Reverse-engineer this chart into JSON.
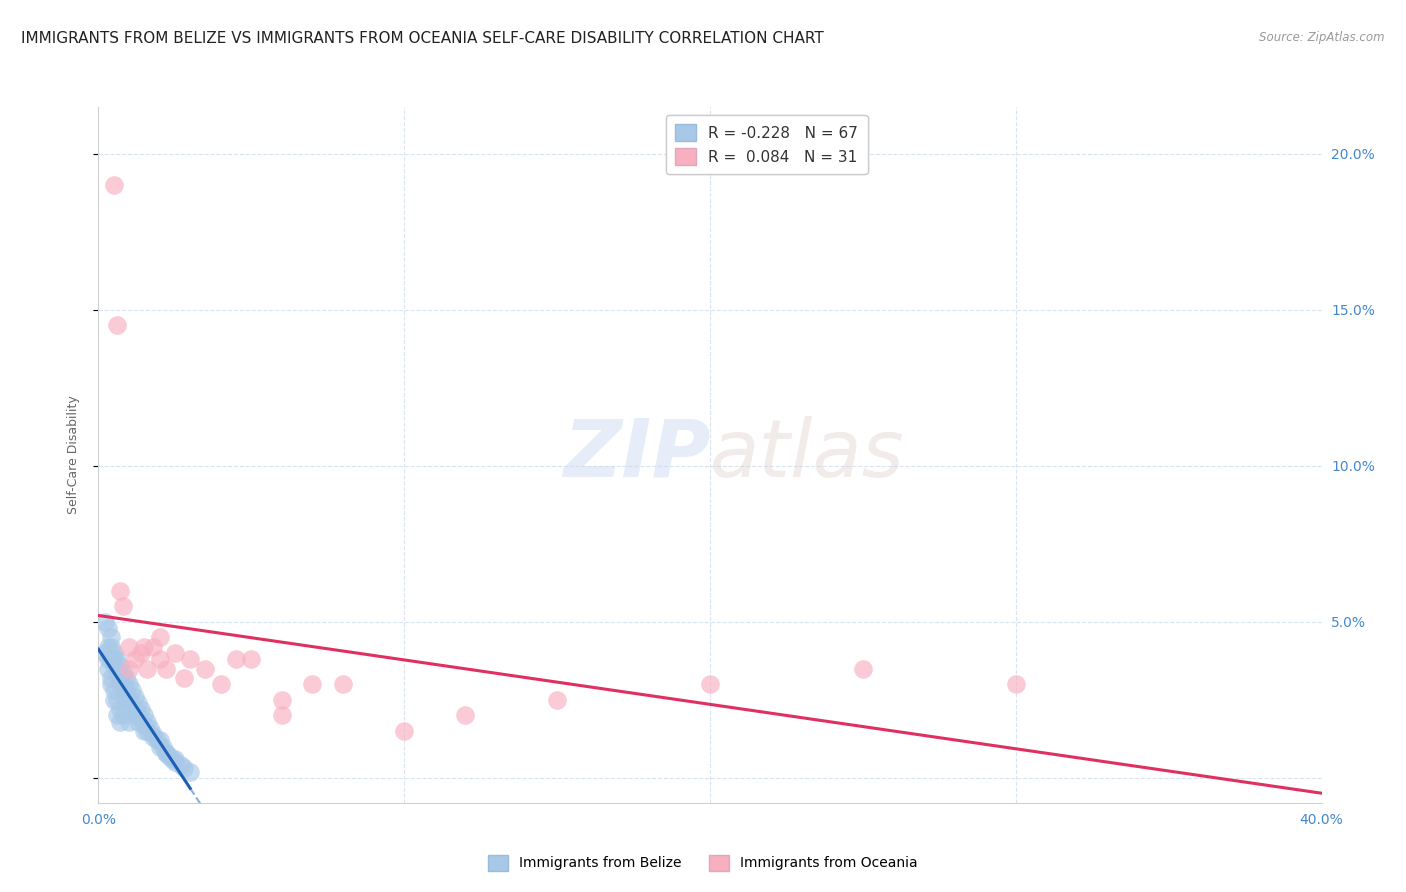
{
  "title": "IMMIGRANTS FROM BELIZE VS IMMIGRANTS FROM OCEANIA SELF-CARE DISABILITY CORRELATION CHART",
  "source": "Source: ZipAtlas.com",
  "ylabel": "Self-Care Disability",
  "yticks": [
    0.0,
    0.05,
    0.1,
    0.15,
    0.2
  ],
  "xlim": [
    0.0,
    0.4
  ],
  "ylim": [
    -0.008,
    0.215
  ],
  "watermark_zip": "ZIP",
  "watermark_atlas": "atlas",
  "legend_r_belize": "-0.228",
  "legend_n_belize": "67",
  "legend_r_oceania": "0.084",
  "legend_n_oceania": "31",
  "belize_color": "#a8c8e8",
  "oceania_color": "#f8b0c0",
  "belize_line_color": "#1a5fb4",
  "oceania_line_color": "#e0406080",
  "background_color": "#ffffff",
  "grid_color": "#d8e4f0",
  "title_fontsize": 11,
  "axis_label_fontsize": 9,
  "tick_fontsize": 10,
  "tick_color": "#4488cc",
  "belize_x": [
    0.002,
    0.003,
    0.003,
    0.004,
    0.004,
    0.004,
    0.005,
    0.005,
    0.005,
    0.006,
    0.006,
    0.006,
    0.007,
    0.007,
    0.007,
    0.008,
    0.008,
    0.008,
    0.009,
    0.009,
    0.01,
    0.01,
    0.01,
    0.011,
    0.011,
    0.012,
    0.012,
    0.013,
    0.013,
    0.014,
    0.015,
    0.015,
    0.016,
    0.017,
    0.018,
    0.019,
    0.02,
    0.021,
    0.022,
    0.023,
    0.024,
    0.025,
    0.027,
    0.028,
    0.03,
    0.002,
    0.003,
    0.003,
    0.004,
    0.004,
    0.005,
    0.005,
    0.006,
    0.006,
    0.007,
    0.007,
    0.008,
    0.009,
    0.01,
    0.012,
    0.013,
    0.015,
    0.016,
    0.018,
    0.02,
    0.022,
    0.025
  ],
  "belize_y": [
    0.04,
    0.042,
    0.038,
    0.045,
    0.038,
    0.032,
    0.04,
    0.036,
    0.028,
    0.038,
    0.033,
    0.025,
    0.036,
    0.03,
    0.022,
    0.034,
    0.028,
    0.02,
    0.032,
    0.025,
    0.03,
    0.025,
    0.018,
    0.028,
    0.022,
    0.026,
    0.02,
    0.024,
    0.018,
    0.022,
    0.02,
    0.015,
    0.018,
    0.016,
    0.014,
    0.012,
    0.012,
    0.01,
    0.008,
    0.007,
    0.006,
    0.005,
    0.004,
    0.003,
    0.002,
    0.05,
    0.048,
    0.035,
    0.042,
    0.03,
    0.038,
    0.025,
    0.035,
    0.02,
    0.032,
    0.018,
    0.03,
    0.028,
    0.026,
    0.022,
    0.02,
    0.017,
    0.015,
    0.013,
    0.01,
    0.008,
    0.006
  ],
  "oceania_x": [
    0.005,
    0.006,
    0.007,
    0.008,
    0.01,
    0.012,
    0.014,
    0.016,
    0.018,
    0.02,
    0.022,
    0.025,
    0.028,
    0.03,
    0.035,
    0.04,
    0.045,
    0.05,
    0.06,
    0.07,
    0.08,
    0.1,
    0.12,
    0.15,
    0.2,
    0.25,
    0.3,
    0.01,
    0.015,
    0.02,
    0.06
  ],
  "oceania_y": [
    0.19,
    0.145,
    0.06,
    0.055,
    0.042,
    0.038,
    0.04,
    0.035,
    0.042,
    0.038,
    0.035,
    0.04,
    0.032,
    0.038,
    0.035,
    0.03,
    0.038,
    0.038,
    0.025,
    0.03,
    0.03,
    0.015,
    0.02,
    0.025,
    0.03,
    0.035,
    0.03,
    0.035,
    0.042,
    0.045,
    0.02
  ]
}
